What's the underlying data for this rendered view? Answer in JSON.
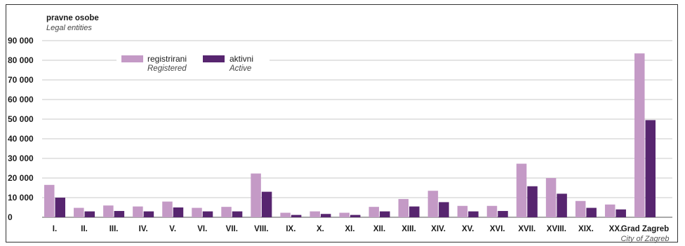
{
  "chart_data": {
    "type": "bar",
    "unit_label": "pravne osobe",
    "unit_label_en": "Legal entities",
    "categories": [
      "I.",
      "II.",
      "III.",
      "IV.",
      "V.",
      "VI.",
      "VII.",
      "VIII.",
      "IX.",
      "X.",
      "XI.",
      "XII.",
      "XIII.",
      "XIV.",
      "XV.",
      "XVI.",
      "XVII.",
      "XVIII.",
      "XIX.",
      "XX.",
      "Grad Zagreb"
    ],
    "category_subtitles": {
      "Grad Zagreb": "City of Zagreb"
    },
    "series": [
      {
        "name": "registrirani",
        "name_en": "Registered",
        "color": "#c49ac6",
        "values": [
          16500,
          4800,
          6000,
          5500,
          8000,
          4800,
          5300,
          22300,
          2300,
          3000,
          2300,
          5300,
          9300,
          13500,
          5800,
          5800,
          27300,
          20000,
          8300,
          6500,
          83500
        ]
      },
      {
        "name": "aktivni",
        "name_en": "Active",
        "color": "#57256f",
        "values": [
          10000,
          3000,
          3200,
          3000,
          5000,
          3000,
          3000,
          13000,
          1200,
          1700,
          1200,
          3000,
          5500,
          7700,
          3000,
          3200,
          15800,
          12000,
          4800,
          4000,
          49500
        ]
      }
    ],
    "yticks": [
      "0",
      "10 000",
      "20 000",
      "30 000",
      "40 000",
      "50 000",
      "60 000",
      "70 000",
      "80 000",
      "90 000"
    ],
    "ylim": [
      0,
      90000
    ],
    "grid": true,
    "legend_position": "top-left"
  }
}
